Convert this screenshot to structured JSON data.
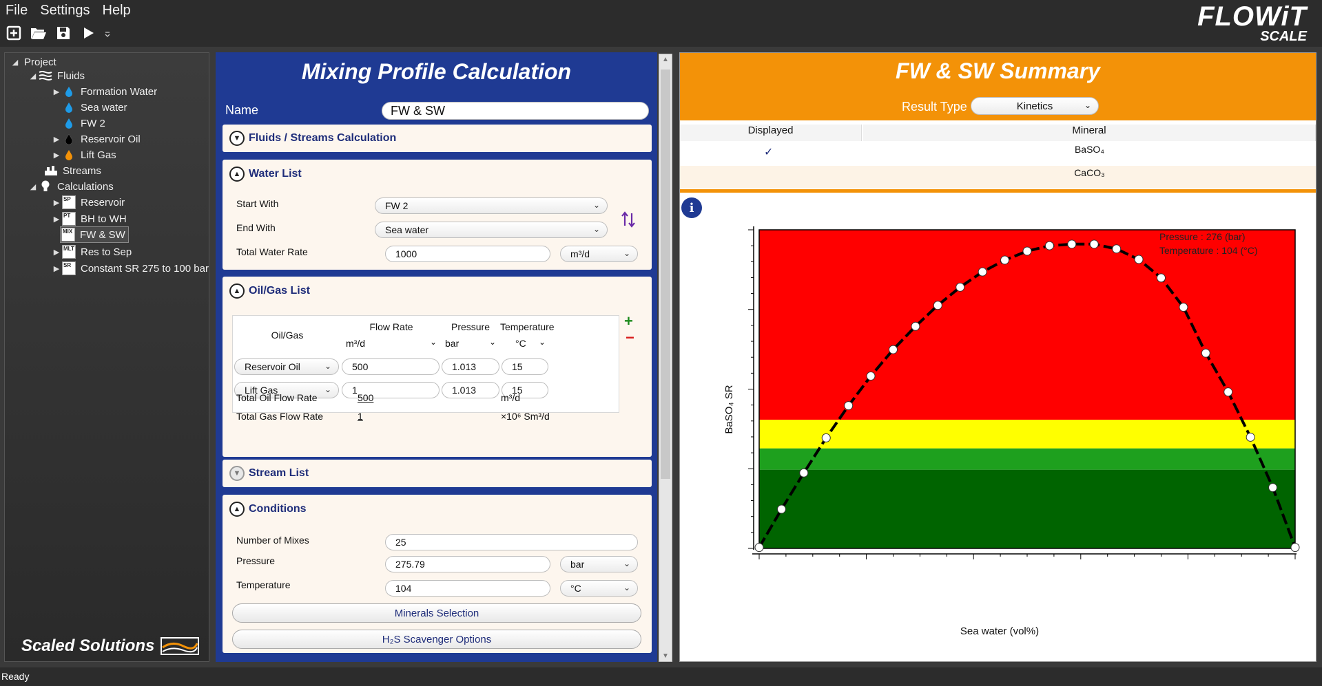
{
  "menu": [
    "File",
    "Settings",
    "Help"
  ],
  "logo": {
    "brand": "FLOWiT",
    "sub": "SCALE"
  },
  "toolbar": {
    "icons": [
      "new-icon",
      "open-folder-icon",
      "save-icon",
      "run-icon",
      "overflow-icon"
    ]
  },
  "tree": {
    "project": "Project",
    "fluids": "Fluids",
    "formation_water": "Formation Water",
    "sea_water": "Sea water",
    "fw2": "FW 2",
    "reservoir_oil": "Reservoir Oil",
    "lift_gas": "Lift Gas",
    "streams": "Streams",
    "calculations": "Calculations",
    "calc_items": [
      {
        "label": "Reservoir",
        "badge": "SP"
      },
      {
        "label": "BH to WH",
        "badge": "PT"
      },
      {
        "label": "FW & SW",
        "badge": "MIX"
      },
      {
        "label": "Res to Sep",
        "badge": "MLT"
      },
      {
        "label": "Constant SR 275 to 100 bar",
        "badge": "SR"
      }
    ]
  },
  "brand": "Scaled Solutions",
  "mixing": {
    "title": "Mixing Profile Calculation",
    "name_label": "Name",
    "name_value": "FW & SW",
    "fluids_streams": "Fluids / Streams Calculation",
    "water_list": {
      "title": "Water List",
      "start_with_label": "Start With",
      "start_with_value": "FW 2",
      "end_with_label": "End With",
      "end_with_value": "Sea water",
      "total_rate_label": "Total Water Rate",
      "total_rate_value": "1000",
      "total_rate_unit": "m³/d"
    },
    "oilgas": {
      "title": "Oil/Gas List",
      "col_oilgas": "Oil/Gas",
      "col_flow": "Flow Rate",
      "col_flow_unit": "m³/d",
      "col_pressure": "Pressure",
      "col_pressure_unit": "bar",
      "col_temp": "Temperature",
      "col_temp_unit": "°C",
      "rows": [
        {
          "name": "Reservoir Oil",
          "flow": "500",
          "pressure": "1.013",
          "temp": "15"
        },
        {
          "name": "Lift Gas",
          "flow": "1",
          "pressure": "1.013",
          "temp": "15"
        }
      ],
      "total_oil_label": "Total Oil Flow Rate",
      "total_oil_value": "500",
      "total_oil_unit": "m³/d",
      "total_gas_label": "Total Gas Flow Rate",
      "total_gas_value": "1",
      "total_gas_unit": "×10⁶ Sm³/d"
    },
    "stream_list": "Stream List",
    "conditions": {
      "title": "Conditions",
      "mixes_label": "Number of Mixes",
      "mixes_value": "25",
      "pressure_label": "Pressure",
      "pressure_value": "275.79",
      "pressure_unit": "bar",
      "temp_label": "Temperature",
      "temp_value": "104",
      "temp_unit": "°C",
      "minerals_btn": "Minerals Selection",
      "h2s_btn": "H₂S Scavenger Options"
    }
  },
  "summary": {
    "title": "FW & SW Summary",
    "result_type_label": "Result Type",
    "result_type_value": "Kinetics",
    "col_displayed": "Displayed",
    "col_mineral": "Mineral",
    "minerals": [
      {
        "name": "BaSO₄",
        "displayed": "✓"
      },
      {
        "name": "CaCO₃",
        "displayed": ""
      }
    ]
  },
  "chart_data": {
    "type": "line",
    "xlabel": "Sea water (vol%)",
    "ylabel": "BaSO₄ SR",
    "annotation": [
      "Pressure : 276 (bar)",
      "Temperature : 104 (°C)"
    ],
    "xlim": [
      0,
      100
    ],
    "ylim": [
      0,
      1
    ],
    "bands": [
      {
        "from": 0,
        "to": 0.247,
        "color": "#006400"
      },
      {
        "from": 0.247,
        "to": 0.314,
        "color": "#1ea01e"
      },
      {
        "from": 0.314,
        "to": 0.404,
        "color": "#ffff00"
      },
      {
        "from": 0.404,
        "to": 1.0,
        "color": "#ff0000"
      }
    ],
    "x": [
      0,
      4.17,
      8.33,
      12.5,
      16.67,
      20.83,
      25,
      29.17,
      33.33,
      37.5,
      41.67,
      45.83,
      50,
      54.17,
      58.33,
      62.5,
      66.67,
      70.83,
      75,
      79.17,
      83.33,
      87.5,
      91.67,
      95.83,
      100
    ],
    "y": [
      0.003,
      0.123,
      0.237,
      0.347,
      0.448,
      0.541,
      0.624,
      0.697,
      0.763,
      0.82,
      0.868,
      0.905,
      0.933,
      0.95,
      0.955,
      0.955,
      0.94,
      0.907,
      0.849,
      0.757,
      0.613,
      0.491,
      0.349,
      0.191,
      0.003
    ]
  },
  "status": "Ready"
}
